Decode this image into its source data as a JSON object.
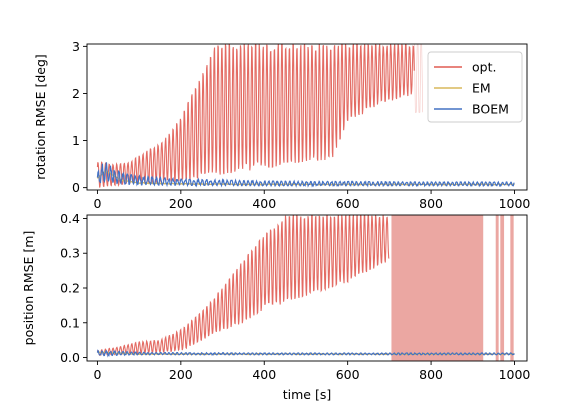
{
  "chart_data": [
    {
      "type": "line",
      "title": "",
      "xlabel": "",
      "ylabel": "rotation RMSE [deg]",
      "xlim": [
        -25,
        1030
      ],
      "ylim": [
        -0.05,
        3.05
      ],
      "xticks": [
        0,
        200,
        400,
        600,
        800,
        1000
      ],
      "xtick_labels": [
        "0",
        "200",
        "400",
        "600",
        "800",
        "1000"
      ],
      "yticks": [
        0,
        1,
        2,
        3
      ],
      "ytick_labels": [
        "0",
        "1",
        "2",
        "3"
      ],
      "grid": false,
      "legend": "top-right",
      "series": [
        {
          "name": "opt.",
          "color": "#e05b52",
          "style": "oscillating-envelope",
          "x": [
            0,
            40,
            80,
            120,
            160,
            200,
            240,
            280,
            320,
            360,
            400,
            440,
            480,
            520,
            560,
            600,
            640,
            680,
            720,
            760
          ],
          "low": [
            0.0,
            0.05,
            0.08,
            0.1,
            0.12,
            0.15,
            0.2,
            0.3,
            0.35,
            0.4,
            0.45,
            0.5,
            0.55,
            0.6,
            0.6,
            1.4,
            1.6,
            1.8,
            1.9,
            2.0
          ],
          "high": [
            0.55,
            0.5,
            0.55,
            0.8,
            1.0,
            1.5,
            2.2,
            3.05,
            3.05,
            3.05,
            3.05,
            3.05,
            3.05,
            3.05,
            3.05,
            3.05,
            3.05,
            3.05,
            3.05,
            3.05
          ]
        },
        {
          "name": "EM",
          "color": "#d9b85c",
          "style": "line",
          "x": [
            0,
            20,
            40,
            60,
            100,
            200,
            400,
            600,
            800,
            1000
          ],
          "y": [
            0.2,
            0.35,
            0.25,
            0.15,
            0.1,
            0.08,
            0.07,
            0.07,
            0.07,
            0.07
          ]
        },
        {
          "name": "BOEM",
          "color": "#4472c4",
          "style": "noisy-band",
          "x": [
            0,
            10,
            20,
            40,
            60,
            100,
            200,
            400,
            600,
            800,
            1000
          ],
          "low": [
            0.05,
            0.1,
            0.15,
            0.1,
            0.08,
            0.06,
            0.05,
            0.04,
            0.04,
            0.04,
            0.04
          ],
          "high": [
            0.3,
            0.5,
            0.55,
            0.4,
            0.3,
            0.25,
            0.18,
            0.14,
            0.13,
            0.12,
            0.12
          ]
        }
      ]
    },
    {
      "type": "line",
      "title": "",
      "xlabel": "time [s]",
      "ylabel": "position RMSE [m]",
      "xlim": [
        -25,
        1030
      ],
      "ylim": [
        -0.01,
        0.41
      ],
      "xticks": [
        0,
        200,
        400,
        600,
        800,
        1000
      ],
      "xtick_labels": [
        "0",
        "200",
        "400",
        "600",
        "800",
        "1000"
      ],
      "yticks": [
        0.0,
        0.1,
        0.2,
        0.3,
        0.4
      ],
      "ytick_labels": [
        "0.0",
        "0.1",
        "0.2",
        "0.3",
        "0.4"
      ],
      "grid": false,
      "legend": "none",
      "series": [
        {
          "name": "opt.",
          "color": "#e05b52",
          "style": "oscillating-envelope",
          "x": [
            0,
            50,
            100,
            150,
            200,
            250,
            300,
            350,
            400,
            450,
            500,
            550,
            600,
            650,
            700
          ],
          "low": [
            0.005,
            0.01,
            0.012,
            0.015,
            0.02,
            0.05,
            0.08,
            0.1,
            0.14,
            0.16,
            0.18,
            0.2,
            0.22,
            0.25,
            0.28
          ],
          "high": [
            0.02,
            0.03,
            0.045,
            0.05,
            0.08,
            0.13,
            0.2,
            0.28,
            0.35,
            0.41,
            0.41,
            0.41,
            0.41,
            0.41,
            0.41
          ]
        },
        {
          "name": "EM",
          "color": "#d9b85c",
          "style": "line",
          "x": [
            0,
            100,
            200,
            400,
            600,
            800,
            1000
          ],
          "y": [
            0.015,
            0.01,
            0.01,
            0.01,
            0.01,
            0.01,
            0.01
          ]
        },
        {
          "name": "BOEM",
          "color": "#4472c4",
          "style": "noisy-band",
          "x": [
            0,
            100,
            200,
            400,
            600,
            800,
            1000
          ],
          "low": [
            0.005,
            0.008,
            0.008,
            0.008,
            0.008,
            0.008,
            0.008
          ],
          "high": [
            0.02,
            0.015,
            0.014,
            0.013,
            0.013,
            0.013,
            0.013
          ]
        }
      ],
      "shaded_regions": [
        {
          "x0": 705,
          "x1": 925,
          "color": "#eaa29d"
        },
        {
          "x0": 955,
          "x1": 962,
          "color": "#eaa29d"
        },
        {
          "x0": 966,
          "x1": 975,
          "color": "#eaa29d"
        },
        {
          "x0": 990,
          "x1": 998,
          "color": "#eaa29d"
        }
      ]
    }
  ]
}
